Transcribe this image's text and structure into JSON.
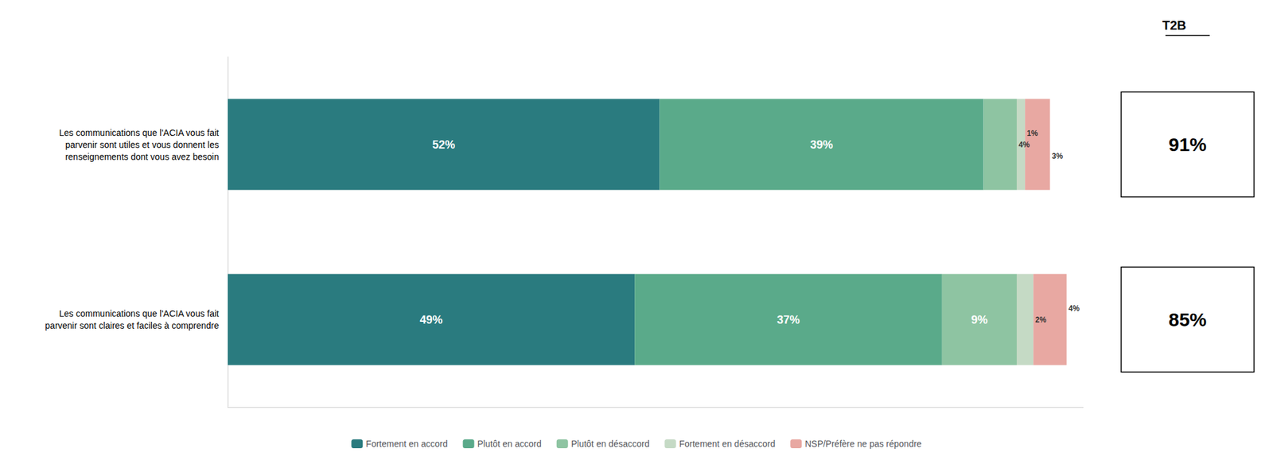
{
  "chart_data": {
    "type": "bar",
    "orientation": "horizontal",
    "stacked": true,
    "data_labels": true,
    "grid": false,
    "legend": "bottom",
    "tick_labels": "y",
    "categories": [
      "Les communications que l'ACIA vous fait\nparvenir sont utiles et vous donnent les\nrenseignements dont vous avez besoin",
      "Les communications que l'ACIA vous fait\nparvenir sont claires et faciles à comprendre"
    ],
    "xlim": [
      0,
      103
    ],
    "xticks": [],
    "series": [
      {
        "name": "Fortement en accord",
        "color": "#2a7b7f",
        "values": [
          52,
          49
        ],
        "value_labels": [
          "52%",
          "49%"
        ]
      },
      {
        "name": "Plutôt en accord",
        "color": "#5aaa8a",
        "values": [
          39,
          37
        ],
        "value_labels": [
          "39%",
          "37%"
        ]
      },
      {
        "name": "Plutôt en désaccord",
        "color": "#8ec4a2",
        "values": [
          4,
          9
        ],
        "value_labels": [
          "4%",
          "9%"
        ]
      },
      {
        "name": "Fortement en désaccord",
        "color": "#c5dac5",
        "values": [
          1,
          2
        ],
        "value_labels": [
          "1%",
          "2%"
        ]
      },
      {
        "name": "NSP/Préfère ne pas répondre",
        "color": "#e8a8a2",
        "values": [
          3,
          4
        ],
        "value_labels": [
          "3%",
          "4%"
        ]
      }
    ],
    "t2b": {
      "title": "T2B",
      "values": [
        91,
        85
      ],
      "value_labels": [
        "91%",
        "85%"
      ]
    }
  }
}
